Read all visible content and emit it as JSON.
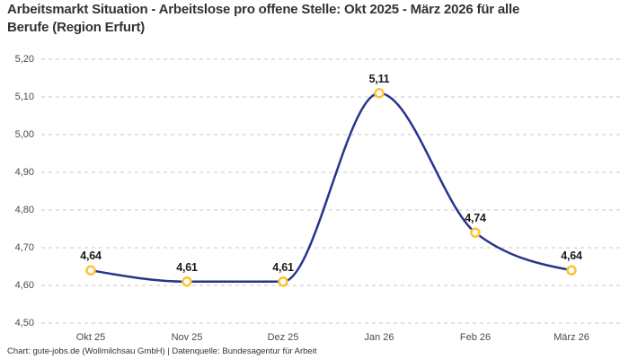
{
  "title": "Arbeitsmarkt Situation - Arbeitslose pro offene Stelle: Okt 2025 - März 2026 für alle Berufe (Region Erfurt)",
  "title_lines": {
    "line1": "Arbeitsmarkt Situation - Arbeitslose pro offene Stelle: Okt 2025 - März 2026 für alle",
    "line2": "Berufe (Region Erfurt)"
  },
  "footer": "Chart: gute-jobs.de (Wollmilchsau GmbH) | Datenquelle: Bundesagentur für Arbeit",
  "colors": {
    "line": "#26348c",
    "marker_ring": "#fdc331",
    "marker_fill": "#ffffff",
    "grid": "#c8c8c8",
    "axis_text": "#4a4a4a",
    "title_text": "#333333",
    "value_label_text": "#1a1a1a",
    "background": "#ffffff"
  },
  "chart_data": {
    "type": "line",
    "title": "Arbeitsmarkt Situation - Arbeitslose pro offene Stelle: Okt 2025 - März 2026 für alle Berufe (Region Erfurt)",
    "categories": [
      "Okt 25",
      "Nov 25",
      "Dez 25",
      "Jan 26",
      "Feb 26",
      "März 26"
    ],
    "values": [
      4.64,
      4.61,
      4.61,
      5.11,
      4.74,
      4.64
    ],
    "value_labels": [
      "4,64",
      "4,61",
      "4,61",
      "5,11",
      "4,74",
      "4,64"
    ],
    "y_tick_values": [
      4.5,
      4.6,
      4.7,
      4.8,
      4.9,
      5.0,
      5.1,
      5.2
    ],
    "y_tick_labels": [
      "4,50",
      "4,60",
      "4,70",
      "4,80",
      "4,90",
      "5,00",
      "5,10",
      "5,20"
    ],
    "ylim": [
      4.5,
      5.2
    ],
    "xlabel": "",
    "ylabel": "",
    "grid": "horizontal-dashed",
    "curve": "smooth-monotone",
    "legend": "none",
    "marker": "open-circle"
  }
}
